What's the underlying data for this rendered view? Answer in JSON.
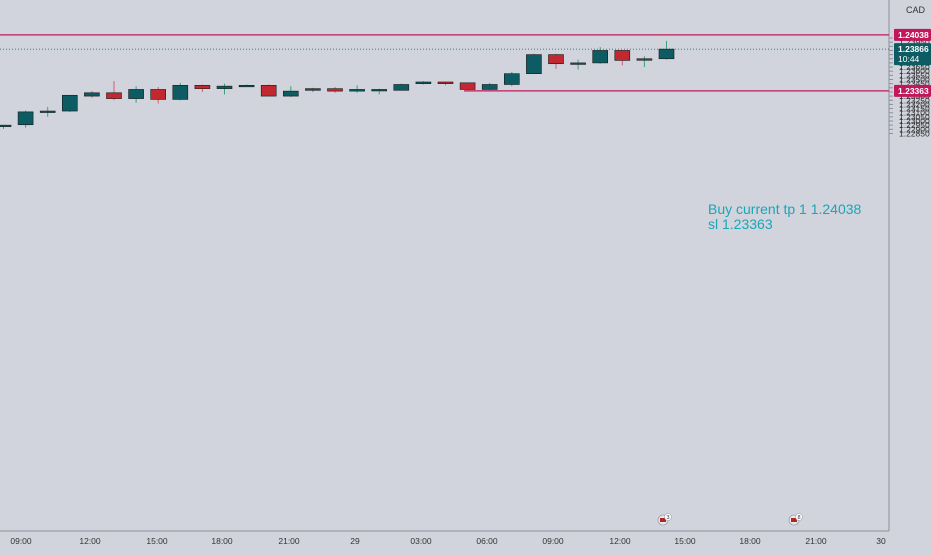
{
  "chart_data": {
    "type": "candlestick",
    "currency_label": "CAD",
    "y_ticks": [
      1.24,
      1.2395,
      1.239,
      1.2385,
      1.238,
      1.2375,
      1.237,
      1.2365,
      1.236,
      1.2355,
      1.235,
      1.2345,
      1.234,
      1.2335,
      1.233,
      1.2325,
      1.232,
      1.2315,
      1.231,
      1.2305,
      1.23,
      1.2295,
      1.229,
      1.2285
    ],
    "y_tick_labels": [
      "1.24000",
      "1.23950",
      "1.23900",
      "1.23850",
      "1.23800",
      "1.23750",
      "1.23700",
      "1.23650",
      "1.23600",
      "1.23550",
      "1.23500",
      "1.23450",
      "1.23400",
      "1.23350",
      "1.23300",
      "1.23250",
      "1.23200",
      "1.23150",
      "1.23100",
      "1.23050",
      "1.23000",
      "1.22950",
      "1.22900",
      "1.22850"
    ],
    "x_tick_labels": [
      "09:00",
      "12:00",
      "15:00",
      "18:00",
      "21:00",
      "29",
      "03:00",
      "06:00",
      "09:00",
      "12:00",
      "15:00",
      "18:00",
      "21:00",
      "30"
    ],
    "up_color": "#0d5c63",
    "down_color": "#c12830",
    "candles": [
      {
        "o": 1.22935,
        "h": 1.22955,
        "l": 1.22905,
        "c": 1.2295
      },
      {
        "o": 1.22955,
        "h": 1.23125,
        "l": 1.2292,
        "c": 1.2311
      },
      {
        "o": 1.2311,
        "h": 1.2317,
        "l": 1.2305,
        "c": 1.2312
      },
      {
        "o": 1.2312,
        "h": 1.2331,
        "l": 1.2311,
        "c": 1.2331
      },
      {
        "o": 1.233,
        "h": 1.2336,
        "l": 1.2328,
        "c": 1.2334
      },
      {
        "o": 1.2334,
        "h": 1.2348,
        "l": 1.2325,
        "c": 1.2327
      },
      {
        "o": 1.2327,
        "h": 1.2342,
        "l": 1.2322,
        "c": 1.2338
      },
      {
        "o": 1.2338,
        "h": 1.2341,
        "l": 1.2321,
        "c": 1.2326
      },
      {
        "o": 1.2326,
        "h": 1.2346,
        "l": 1.2325,
        "c": 1.2343
      },
      {
        "o": 1.2343,
        "h": 1.2344,
        "l": 1.2335,
        "c": 1.2339
      },
      {
        "o": 1.2339,
        "h": 1.2345,
        "l": 1.2332,
        "c": 1.2342
      },
      {
        "o": 1.2342,
        "h": 1.2344,
        "l": 1.2341,
        "c": 1.2343
      },
      {
        "o": 1.2343,
        "h": 1.2344,
        "l": 1.233,
        "c": 1.233
      },
      {
        "o": 1.233,
        "h": 1.2342,
        "l": 1.2329,
        "c": 1.2336
      },
      {
        "o": 1.2337,
        "h": 1.234,
        "l": 1.2335,
        "c": 1.2339
      },
      {
        "o": 1.2339,
        "h": 1.2341,
        "l": 1.2334,
        "c": 1.2336
      },
      {
        "o": 1.2336,
        "h": 1.2343,
        "l": 1.2334,
        "c": 1.2338
      },
      {
        "o": 1.2338,
        "h": 1.2339,
        "l": 1.2332,
        "c": 1.2338
      },
      {
        "o": 1.2337,
        "h": 1.2345,
        "l": 1.2337,
        "c": 1.2344
      },
      {
        "o": 1.2345,
        "h": 1.2348,
        "l": 1.2344,
        "c": 1.2347
      },
      {
        "o": 1.2347,
        "h": 1.2347,
        "l": 1.2343,
        "c": 1.2345
      },
      {
        "o": 1.2346,
        "h": 1.2346,
        "l": 1.2337,
        "c": 1.2338
      },
      {
        "o": 1.2338,
        "h": 1.2346,
        "l": 1.2337,
        "c": 1.2344
      },
      {
        "o": 1.2344,
        "h": 1.2359,
        "l": 1.2342,
        "c": 1.2357
      },
      {
        "o": 1.2357,
        "h": 1.2381,
        "l": 1.2357,
        "c": 1.238
      },
      {
        "o": 1.238,
        "h": 1.2381,
        "l": 1.2363,
        "c": 1.2369
      },
      {
        "o": 1.2369,
        "h": 1.2374,
        "l": 1.2362,
        "c": 1.237
      },
      {
        "o": 1.237,
        "h": 1.2389,
        "l": 1.2369,
        "c": 1.2385
      },
      {
        "o": 1.2385,
        "h": 1.2385,
        "l": 1.2367,
        "c": 1.2373
      },
      {
        "o": 1.2374,
        "h": 1.2378,
        "l": 1.2365,
        "c": 1.2375
      },
      {
        "o": 1.2375,
        "h": 1.23965,
        "l": 1.2374,
        "c": 1.23866
      }
    ],
    "current_price_label": "1.23866",
    "countdown_label": "10:44",
    "tp_price": 1.24038,
    "tp_label": "1.24038",
    "sl_price": 1.23363,
    "sl_label": "1.23363",
    "level_color": "#c2185b",
    "annotation_lines": [
      "Buy current tp 1 1.24038",
      "sl 1.23363"
    ],
    "event_markers": [
      {
        "count": "3"
      },
      {
        "count": "8"
      }
    ]
  }
}
